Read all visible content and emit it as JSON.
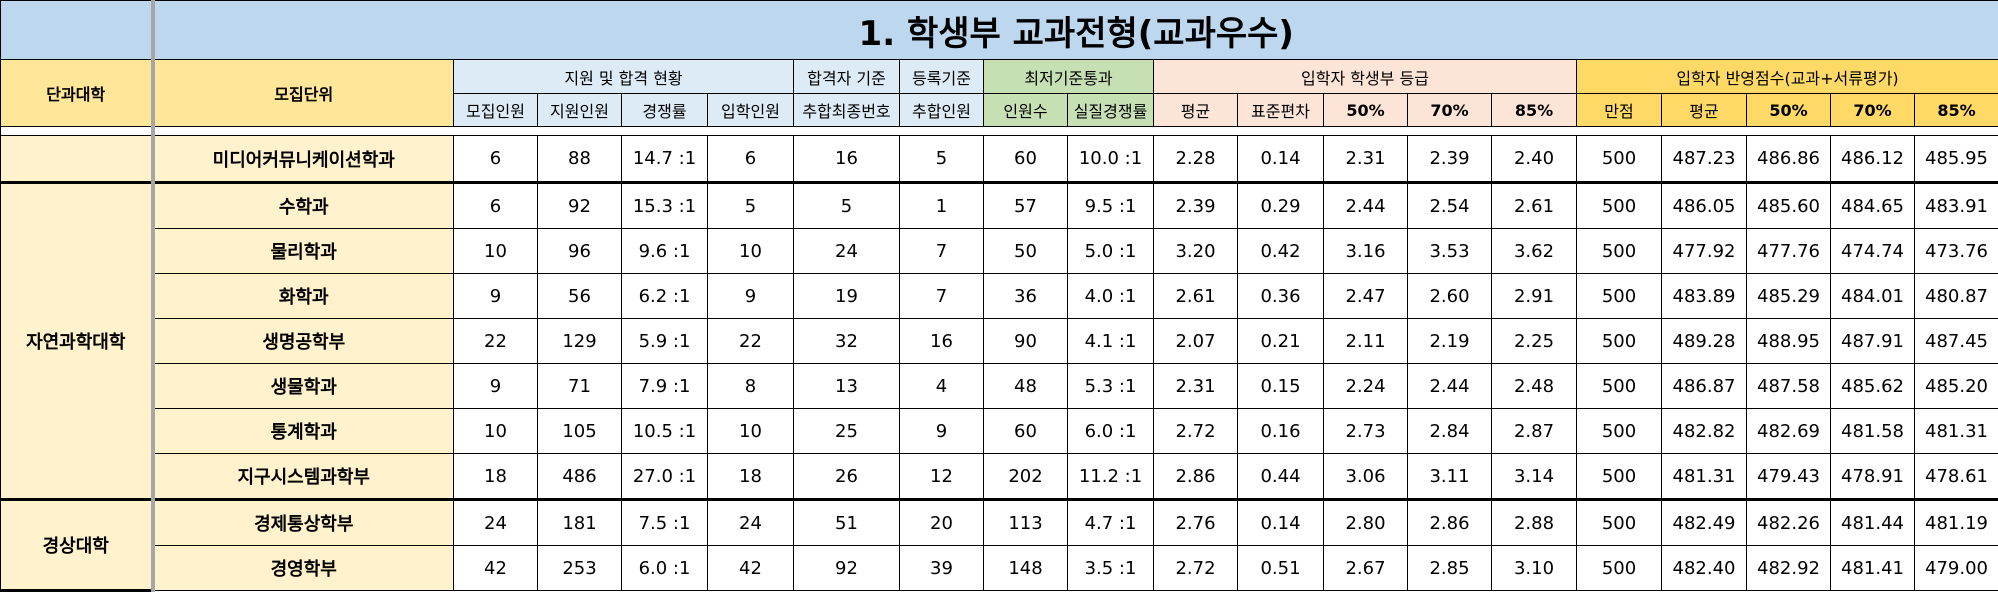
{
  "title": "1. 학생부 교과전형(교과우수)",
  "headers": {
    "college": "단과대학",
    "unit": "모집단위",
    "group_apply": "지원 및 합격 현황",
    "group_pass": "합격자 기준",
    "group_reg": "등록기준",
    "group_min": "최저기준통과",
    "group_grade": "입학자 학생부 등급",
    "group_score": "입학자 반영점수(교과+서류평가)",
    "cols": [
      "모집인원",
      "지원인원",
      "경쟁률",
      "입학인원",
      "추합최종번호",
      "추합인원",
      "인원수",
      "실질경쟁률",
      "평균",
      "표준편차",
      "50%",
      "70%",
      "85%",
      "만점",
      "평균",
      "50%",
      "70%",
      "85%"
    ]
  },
  "rows": [
    {
      "college": "",
      "unit": "미디어커뮤니케이션학과",
      "cells": [
        "6",
        "88",
        "14.7 :1",
        "6",
        "16",
        "5",
        "60",
        "10.0 :1",
        "2.28",
        "0.14",
        "2.31",
        "2.39",
        "2.40",
        "500",
        "487.23",
        "486.86",
        "486.12",
        "485.95"
      ]
    },
    {
      "college": "자연과학대학",
      "unit": "수학과",
      "cells": [
        "6",
        "92",
        "15.3 :1",
        "5",
        "5",
        "1",
        "57",
        "9.5 :1",
        "2.39",
        "0.29",
        "2.44",
        "2.54",
        "2.61",
        "500",
        "486.05",
        "485.60",
        "484.65",
        "483.91"
      ]
    },
    {
      "college": "",
      "unit": "물리학과",
      "cells": [
        "10",
        "96",
        "9.6 :1",
        "10",
        "24",
        "7",
        "50",
        "5.0 :1",
        "3.20",
        "0.42",
        "3.16",
        "3.53",
        "3.62",
        "500",
        "477.92",
        "477.76",
        "474.74",
        "473.76"
      ]
    },
    {
      "college": "",
      "unit": "화학과",
      "cells": [
        "9",
        "56",
        "6.2 :1",
        "9",
        "19",
        "7",
        "36",
        "4.0 :1",
        "2.61",
        "0.36",
        "2.47",
        "2.60",
        "2.91",
        "500",
        "483.89",
        "485.29",
        "484.01",
        "480.87"
      ]
    },
    {
      "college": "",
      "unit": "생명공학부",
      "cells": [
        "22",
        "129",
        "5.9 :1",
        "22",
        "32",
        "16",
        "90",
        "4.1 :1",
        "2.07",
        "0.21",
        "2.11",
        "2.19",
        "2.25",
        "500",
        "489.28",
        "488.95",
        "487.91",
        "487.45"
      ]
    },
    {
      "college": "",
      "unit": "생물학과",
      "cells": [
        "9",
        "71",
        "7.9 :1",
        "8",
        "13",
        "4",
        "48",
        "5.3 :1",
        "2.31",
        "0.15",
        "2.24",
        "2.44",
        "2.48",
        "500",
        "486.87",
        "487.58",
        "485.62",
        "485.20"
      ]
    },
    {
      "college": "",
      "unit": "통계학과",
      "cells": [
        "10",
        "105",
        "10.5 :1",
        "10",
        "25",
        "9",
        "60",
        "6.0 :1",
        "2.72",
        "0.16",
        "2.73",
        "2.84",
        "2.87",
        "500",
        "482.82",
        "482.69",
        "481.58",
        "481.31"
      ]
    },
    {
      "college": "",
      "unit": "지구시스템과학부",
      "cells": [
        "18",
        "486",
        "27.0 :1",
        "18",
        "26",
        "12",
        "202",
        "11.2 :1",
        "2.86",
        "0.44",
        "3.06",
        "3.11",
        "3.14",
        "500",
        "481.31",
        "479.43",
        "478.91",
        "478.61"
      ]
    },
    {
      "college": "경상대학",
      "unit": "경제통상학부",
      "cells": [
        "24",
        "181",
        "7.5 :1",
        "24",
        "51",
        "20",
        "113",
        "4.7 :1",
        "2.76",
        "0.14",
        "2.80",
        "2.86",
        "2.88",
        "500",
        "482.49",
        "482.26",
        "481.44",
        "481.19"
      ]
    },
    {
      "college": "",
      "unit": "경영학부",
      "cells": [
        "42",
        "253",
        "6.0 :1",
        "42",
        "92",
        "39",
        "148",
        "3.5 :1",
        "2.72",
        "0.51",
        "2.67",
        "2.85",
        "3.10",
        "500",
        "482.40",
        "482.92",
        "481.41",
        "479.00"
      ]
    }
  ]
}
